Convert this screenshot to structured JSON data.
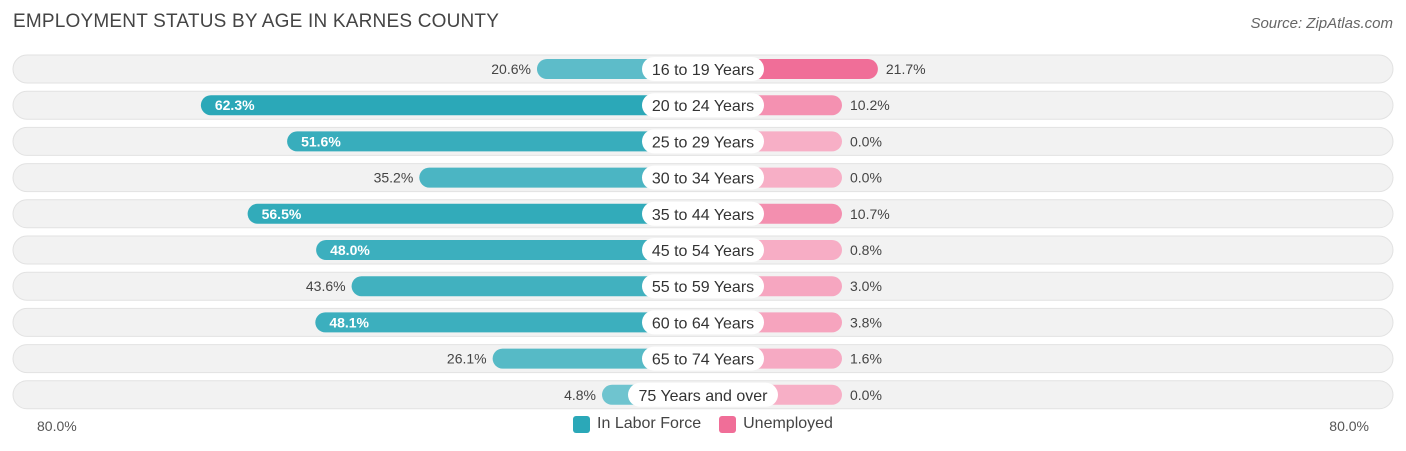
{
  "title": "EMPLOYMENT STATUS BY AGE IN KARNES COUNTY",
  "source": "Source: ZipAtlas.com",
  "colors": {
    "labor_force": "#2BA8B8",
    "unemployed": "#F06E98"
  },
  "chart_data": {
    "type": "bar",
    "orientation": "horizontal-diverging",
    "categories": [
      "16 to 19 Years",
      "20 to 24 Years",
      "25 to 29 Years",
      "30 to 34 Years",
      "35 to 44 Years",
      "45 to 54 Years",
      "55 to 59 Years",
      "60 to 64 Years",
      "65 to 74 Years",
      "75 Years and over"
    ],
    "series": [
      {
        "name": "In Labor Force",
        "values": [
          20.6,
          62.3,
          51.6,
          35.2,
          56.5,
          48.0,
          43.6,
          48.1,
          26.1,
          4.8
        ],
        "labels": [
          "20.6%",
          "62.3%",
          "51.6%",
          "35.2%",
          "56.5%",
          "48.0%",
          "43.6%",
          "48.1%",
          "26.1%",
          "4.8%"
        ]
      },
      {
        "name": "Unemployed",
        "values": [
          21.7,
          10.2,
          0.0,
          0.0,
          10.7,
          0.8,
          3.0,
          3.8,
          1.6,
          0.0
        ],
        "labels": [
          "21.7%",
          "10.2%",
          "0.0%",
          "0.0%",
          "10.7%",
          "0.8%",
          "3.0%",
          "3.8%",
          "1.6%",
          "0.0%"
        ]
      }
    ],
    "axis_min_label": "80.0%",
    "axis_max_label": "80.0%",
    "xlim": [
      -80,
      80
    ],
    "legend_position": "bottom-center"
  }
}
